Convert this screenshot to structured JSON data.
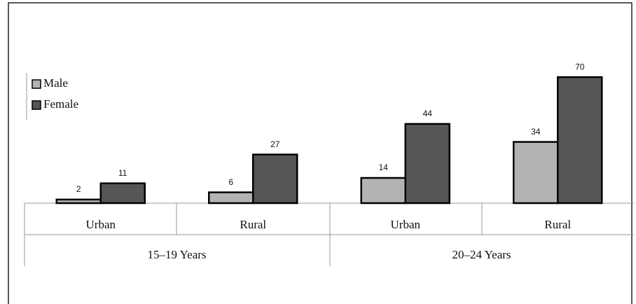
{
  "chart_data": {
    "type": "bar",
    "categories": [
      "Urban",
      "Rural",
      "Urban",
      "Rural"
    ],
    "groups": [
      "15–19 Years",
      "20–24 Years"
    ],
    "series": [
      {
        "name": "Male",
        "color": "#b3b3b3",
        "values": [
          2,
          6,
          14,
          34
        ]
      },
      {
        "name": "Female",
        "color": "#565656",
        "values": [
          11,
          27,
          44,
          70
        ]
      }
    ],
    "legend": "top-left"
  }
}
